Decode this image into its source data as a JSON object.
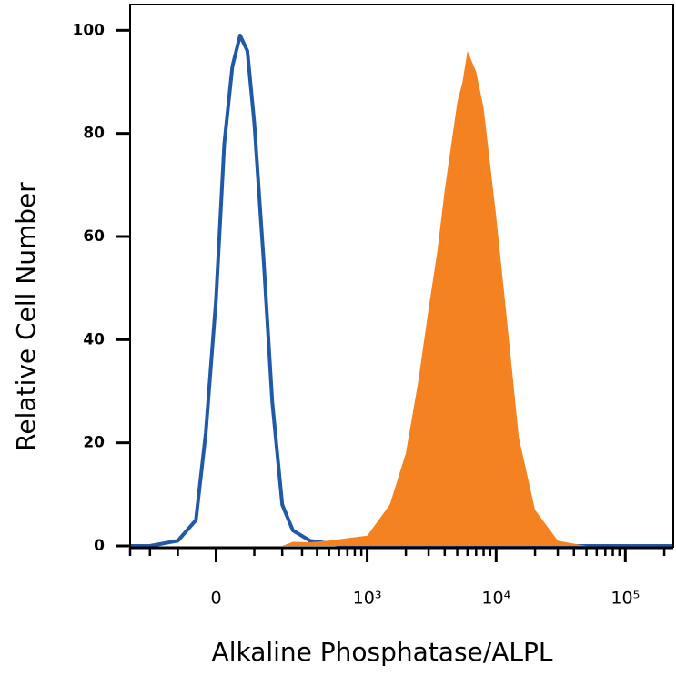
{
  "chart_data": {
    "type": "histogram-overlay",
    "x_label": "Alkaline Phosphatase/ALPL",
    "y_label": "Relative Cell Number",
    "xscale": "biexponential",
    "x": [
      -300,
      -200,
      -100,
      -50,
      -25,
      0,
      20,
      40,
      60,
      80,
      100,
      130,
      160,
      200,
      250,
      350,
      500,
      700,
      1000,
      1500,
      2000,
      2500,
      3000,
      3500,
      4000,
      4500,
      5000,
      5500,
      6000,
      7000,
      8000,
      10000,
      12000,
      15000,
      20000,
      30000,
      50000,
      100000,
      235000
    ],
    "series": [
      {
        "style": "line",
        "color": "#1f59a8",
        "values": [
          0,
          0,
          1,
          5,
          22,
          48,
          78,
          93,
          99,
          96,
          82,
          55,
          28,
          8,
          3,
          1,
          0.5,
          0,
          0,
          0,
          0,
          0,
          0,
          0,
          0,
          0,
          0,
          0,
          0,
          0,
          0,
          0,
          0,
          0,
          0,
          0,
          0,
          0,
          0
        ]
      },
      {
        "style": "area",
        "color": "#f58220",
        "values": [
          0,
          0,
          0,
          0,
          0,
          0,
          0,
          0,
          0,
          0,
          0,
          0,
          0,
          0,
          0.8,
          0.7,
          1,
          1.5,
          2,
          8,
          18,
          32,
          46,
          57,
          69,
          78,
          86,
          90,
          96,
          92,
          85,
          64,
          45,
          21,
          7,
          1,
          0,
          0,
          0
        ]
      }
    ],
    "xlim": [
      -300,
      235000
    ],
    "xticks": [
      0,
      {
        "value": 1000,
        "label": "10³"
      },
      {
        "value": 10000,
        "label": "10⁴"
      },
      {
        "value": 100000,
        "label": "10⁵"
      }
    ],
    "xminorticks": [
      -300,
      -200,
      -100,
      100,
      200,
      300,
      400,
      500,
      600,
      700,
      800,
      900,
      2000,
      3000,
      4000,
      5000,
      6000,
      7000,
      8000,
      9000,
      20000,
      30000,
      40000,
      50000,
      60000,
      70000,
      80000,
      90000,
      200000
    ],
    "ylim": [
      0,
      105
    ],
    "yticks": [
      0,
      20,
      40,
      60,
      80,
      100
    ]
  }
}
